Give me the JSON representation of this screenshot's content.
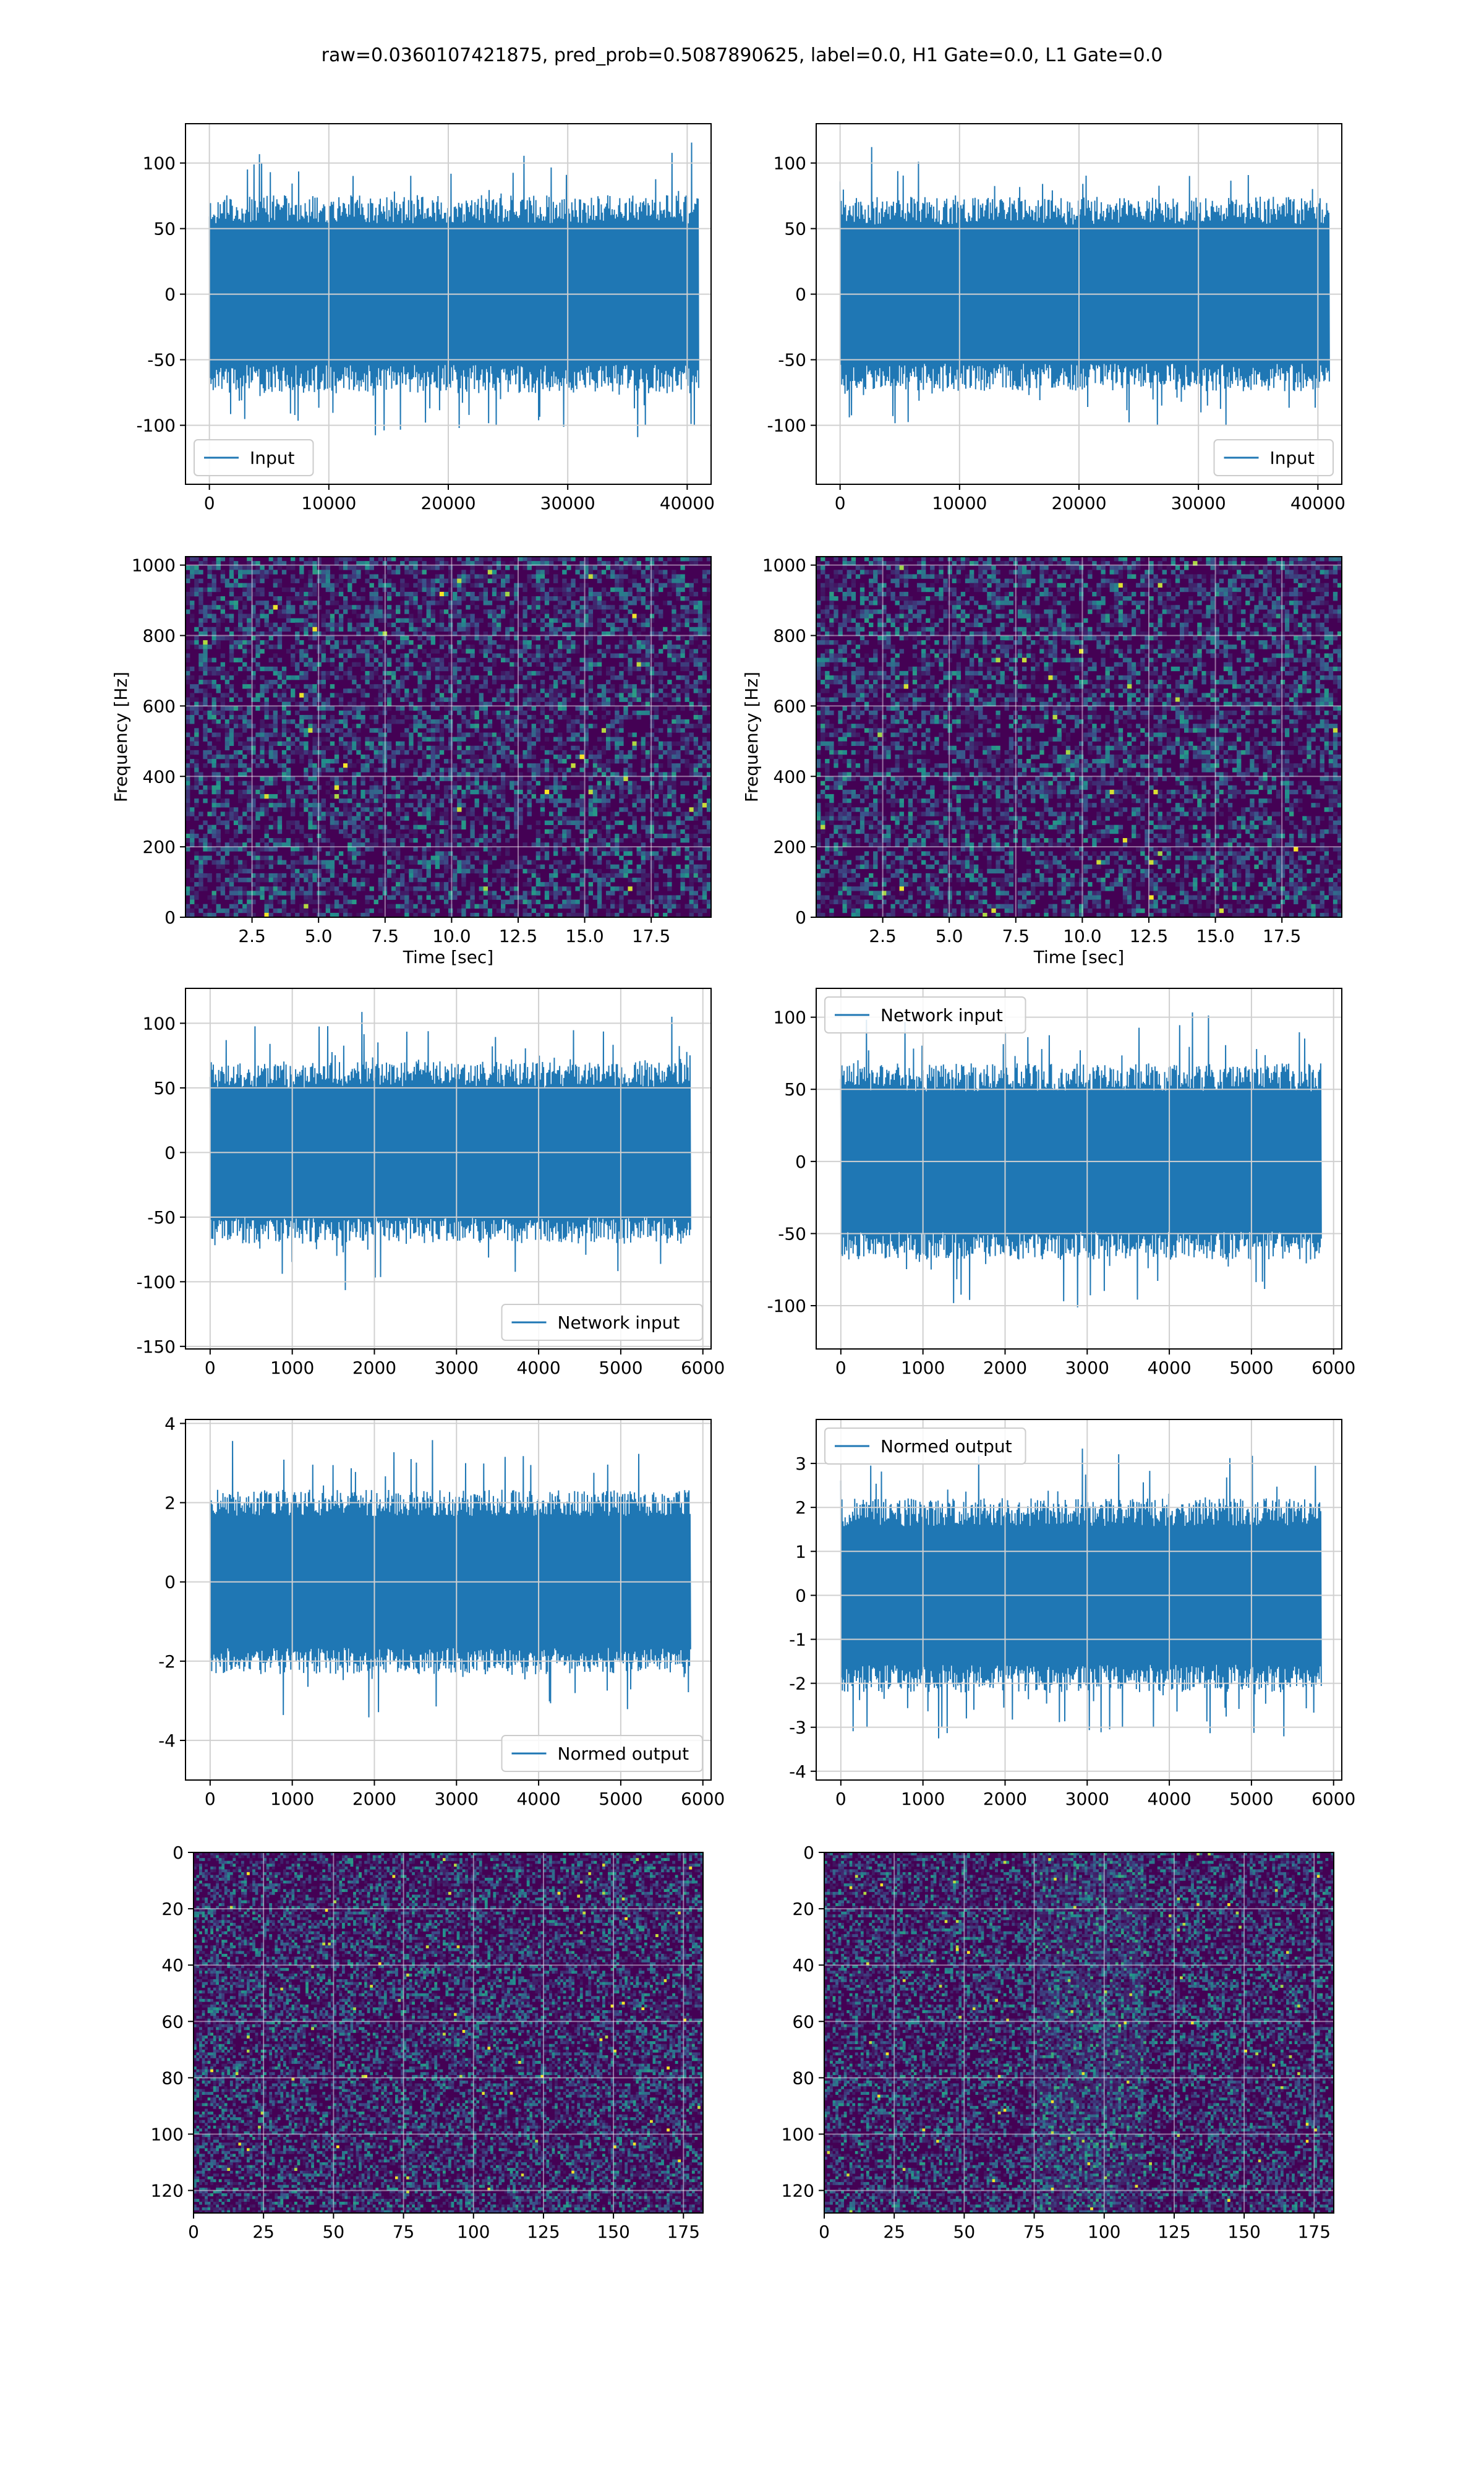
{
  "figure": {
    "title": "raw=0.0360107421875, pred_prob=0.5087890625, label=0.0, H1 Gate=0.0, L1 Gate=0.0"
  },
  "colors": {
    "line": "#1f77b4",
    "viridis_dark": "#440154",
    "grid": "#d0d0d0",
    "axis": "#000000"
  },
  "chart_data": [
    {
      "id": "input-left",
      "type": "line",
      "xlim": [
        -2000,
        42000
      ],
      "ylim": [
        -145,
        130
      ],
      "xticks": [
        0,
        10000,
        20000,
        30000,
        40000
      ],
      "yticks": [
        -100,
        -50,
        0,
        50,
        100
      ],
      "xlabel": "",
      "ylabel": "",
      "legend": "lower left",
      "grid": true,
      "series": [
        {
          "name": "Input",
          "x_range": [
            0,
            40960
          ],
          "amplitude": 120,
          "color": "#1f77b4"
        }
      ]
    },
    {
      "id": "input-right",
      "type": "line",
      "xlim": [
        -2000,
        42000
      ],
      "ylim": [
        -145,
        130
      ],
      "xticks": [
        0,
        10000,
        20000,
        30000,
        40000
      ],
      "yticks": [
        -100,
        -50,
        0,
        50,
        100
      ],
      "xlabel": "",
      "ylabel": "",
      "legend": "lower right",
      "grid": true,
      "series": [
        {
          "name": "Input",
          "x_range": [
            0,
            40960
          ],
          "amplitude": 118,
          "color": "#1f77b4"
        }
      ]
    },
    {
      "id": "spectrogram-left",
      "type": "heatmap",
      "xlim": [
        0,
        19.75
      ],
      "ylim": [
        0,
        1024
      ],
      "xticks": [
        2.5,
        5.0,
        7.5,
        10.0,
        12.5,
        15.0,
        17.5
      ],
      "yticks": [
        0,
        200,
        400,
        600,
        800,
        1000
      ],
      "xlabel": "Time [sec]",
      "ylabel": "Frequency [Hz]",
      "grid": true,
      "colormap": "viridis"
    },
    {
      "id": "spectrogram-right",
      "type": "heatmap",
      "xlim": [
        0,
        19.75
      ],
      "ylim": [
        0,
        1024
      ],
      "xticks": [
        2.5,
        5.0,
        7.5,
        10.0,
        12.5,
        15.0,
        17.5
      ],
      "yticks": [
        0,
        200,
        400,
        600,
        800,
        1000
      ],
      "xlabel": "Time [sec]",
      "ylabel": "Frequency [Hz]",
      "grid": true,
      "colormap": "viridis"
    },
    {
      "id": "network-input-left",
      "type": "line",
      "xlim": [
        -300,
        6100
      ],
      "ylim": [
        -152,
        127
      ],
      "xticks": [
        0,
        1000,
        2000,
        3000,
        4000,
        5000,
        6000
      ],
      "yticks": [
        -150,
        -100,
        -50,
        0,
        50,
        100
      ],
      "xlabel": "",
      "ylabel": "",
      "legend": "lower right",
      "grid": true,
      "series": [
        {
          "name": "Network input",
          "x_range": [
            0,
            5850
          ],
          "amplitude": 112,
          "color": "#1f77b4"
        }
      ]
    },
    {
      "id": "network-input-right",
      "type": "line",
      "xlim": [
        -300,
        6100
      ],
      "ylim": [
        -130,
        120
      ],
      "xticks": [
        0,
        1000,
        2000,
        3000,
        4000,
        5000,
        6000
      ],
      "yticks": [
        -100,
        -50,
        0,
        50,
        100
      ],
      "xlabel": "",
      "ylabel": "",
      "legend": "upper left",
      "grid": true,
      "series": [
        {
          "name": "Network input",
          "x_range": [
            0,
            5850
          ],
          "amplitude": 108,
          "color": "#1f77b4"
        }
      ]
    },
    {
      "id": "normed-output-left",
      "type": "line",
      "xlim": [
        -300,
        6100
      ],
      "ylim": [
        -5,
        4.1
      ],
      "xticks": [
        0,
        1000,
        2000,
        3000,
        4000,
        5000,
        6000
      ],
      "yticks": [
        -4,
        -2,
        0,
        2,
        4
      ],
      "xlabel": "",
      "ylabel": "",
      "legend": "lower right",
      "grid": true,
      "series": [
        {
          "name": "Normed output",
          "x_range": [
            0,
            5850
          ],
          "amplitude": 3.7,
          "color": "#1f77b4"
        }
      ]
    },
    {
      "id": "normed-output-right",
      "type": "line",
      "xlim": [
        -300,
        6100
      ],
      "ylim": [
        -4.2,
        4.0
      ],
      "xticks": [
        0,
        1000,
        2000,
        3000,
        4000,
        5000,
        6000
      ],
      "yticks": [
        -4,
        -3,
        -2,
        -1,
        0,
        1,
        2,
        3
      ],
      "xlabel": "",
      "ylabel": "",
      "legend": "upper left",
      "grid": true,
      "series": [
        {
          "name": "Normed output",
          "x_range": [
            0,
            5850
          ],
          "amplitude": 3.5,
          "color": "#1f77b4"
        }
      ]
    },
    {
      "id": "image-left",
      "type": "heatmap",
      "xlim": [
        0,
        182
      ],
      "ylim": [
        128,
        0
      ],
      "xticks": [
        0,
        25,
        50,
        75,
        100,
        125,
        150,
        175
      ],
      "yticks": [
        0,
        20,
        40,
        60,
        80,
        100,
        120
      ],
      "xlabel": "",
      "ylabel": "",
      "grid": true,
      "colormap": "viridis"
    },
    {
      "id": "image-right",
      "type": "heatmap",
      "xlim": [
        0,
        182
      ],
      "ylim": [
        128,
        0
      ],
      "xticks": [
        0,
        25,
        50,
        75,
        100,
        125,
        150,
        175
      ],
      "yticks": [
        0,
        20,
        40,
        60,
        80,
        100,
        120
      ],
      "xlabel": "",
      "ylabel": "",
      "grid": true,
      "colormap": "viridis"
    }
  ]
}
